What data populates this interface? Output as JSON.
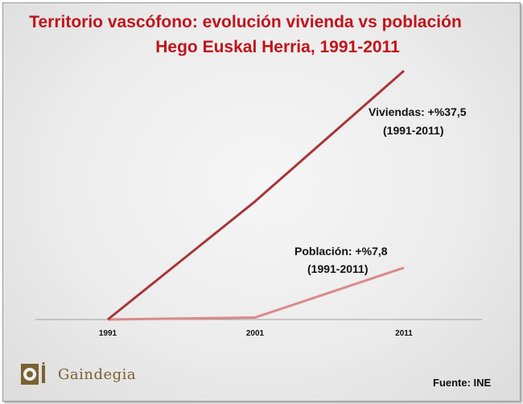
{
  "chart_data": {
    "type": "line",
    "title": "Territorio vascófono: evolución vivienda vs población",
    "subtitle": "Hego Euskal Herria, 1991-2011",
    "categories": [
      "1991",
      "2001",
      "2011"
    ],
    "series": [
      {
        "name": "Viviendas",
        "values": [
          0,
          17.8,
          37.5
        ],
        "color": "#a8363a"
      },
      {
        "name": "Población",
        "values": [
          0,
          0.3,
          7.8
        ],
        "color": "#d98a8a"
      }
    ],
    "ylim": [
      0,
      37.5
    ],
    "grid": false,
    "annotations": [
      {
        "series": "Viviendas",
        "line1": "Viviendas: +%37,5",
        "line2": "(1991-2011)"
      },
      {
        "series": "Población",
        "line1": "Población: +%7,8",
        "line2": "(1991-2011)"
      }
    ]
  },
  "source": "Fuente: INE",
  "logo": {
    "letters": "Gaindegia",
    "icon": "gaindegia-logo-icon"
  }
}
